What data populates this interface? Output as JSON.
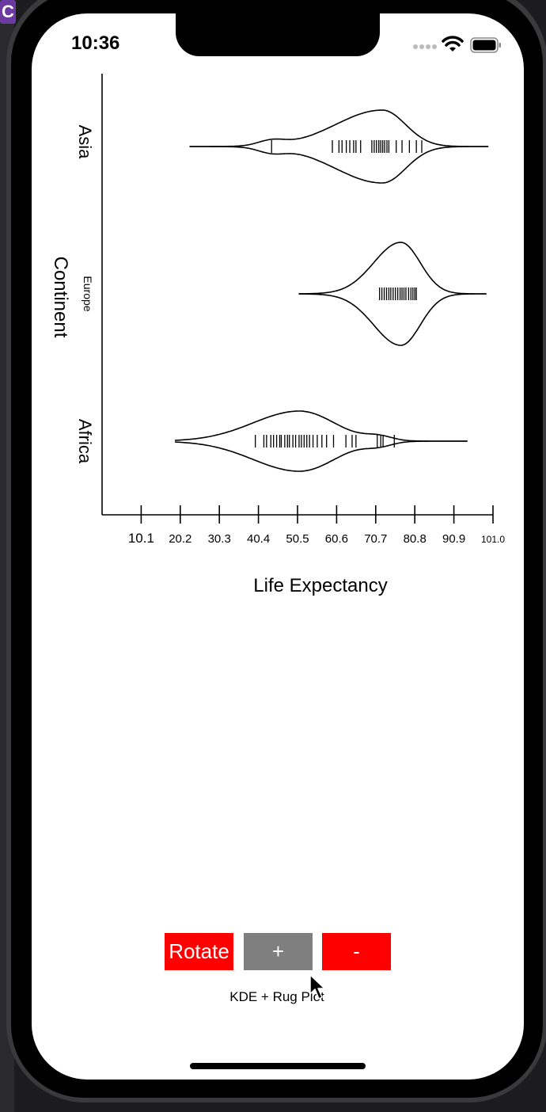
{
  "status_bar": {
    "time": "10:36"
  },
  "app_badge": "C",
  "chart_data": {
    "type": "violin",
    "xlabel": "Life Expectancy",
    "ylabel": "Continent",
    "x_ticks": [
      "10.1",
      "20.2",
      "30.3",
      "40.4",
      "50.5",
      "60.6",
      "70.7",
      "80.8",
      "90.9",
      "101.0"
    ],
    "x_tick_values": [
      10.1,
      20.2,
      30.3,
      40.4,
      50.5,
      60.6,
      70.7,
      80.8,
      90.9,
      101.0
    ],
    "xlim": [
      0,
      101.0
    ],
    "categories": [
      "Asia",
      "Europe",
      "Africa"
    ],
    "series": [
      {
        "name": "Asia",
        "range": [
          22.6,
          99.8
        ],
        "peak": 72.4,
        "rug": [
          43.8,
          59.5,
          61.2,
          62.0,
          63.1,
          64.0,
          65.0,
          65.6,
          66.8,
          69.7,
          70.3,
          70.9,
          71.5,
          72.0,
          72.5,
          73.0,
          73.6,
          74.1,
          76.0,
          77.5,
          79.4,
          81.2,
          82.6
        ]
      },
      {
        "name": "Europe",
        "range": [
          50.8,
          99.3
        ],
        "peak": 77.2,
        "rug": [
          71.7,
          72.3,
          72.9,
          73.5,
          74.1,
          74.6,
          75.2,
          75.8,
          76.4,
          77.0,
          77.5,
          78.0,
          78.5,
          79.2,
          79.8,
          80.3,
          80.8,
          81.2
        ]
      },
      {
        "name": "Africa",
        "range": [
          18.8,
          94.4
        ],
        "peak": 51.0,
        "rug": [
          39.6,
          41.8,
          42.5,
          43.6,
          44.3,
          45.1,
          45.9,
          46.3,
          47.2,
          47.9,
          48.4,
          49.3,
          50.0,
          50.9,
          51.5,
          52.2,
          52.9,
          53.6,
          54.5,
          55.6,
          56.8,
          58.0,
          59.8,
          63.0,
          64.6,
          65.6,
          71.1,
          72.0,
          72.6,
          75.5
        ]
      }
    ]
  },
  "buttons": {
    "rotate": "Rotate",
    "plus": "+",
    "minus": "-"
  },
  "plot_type_label": "KDE + Rug Plot",
  "colors": {
    "button_red": "#ff0000",
    "button_gray": "#7f7f7f"
  }
}
